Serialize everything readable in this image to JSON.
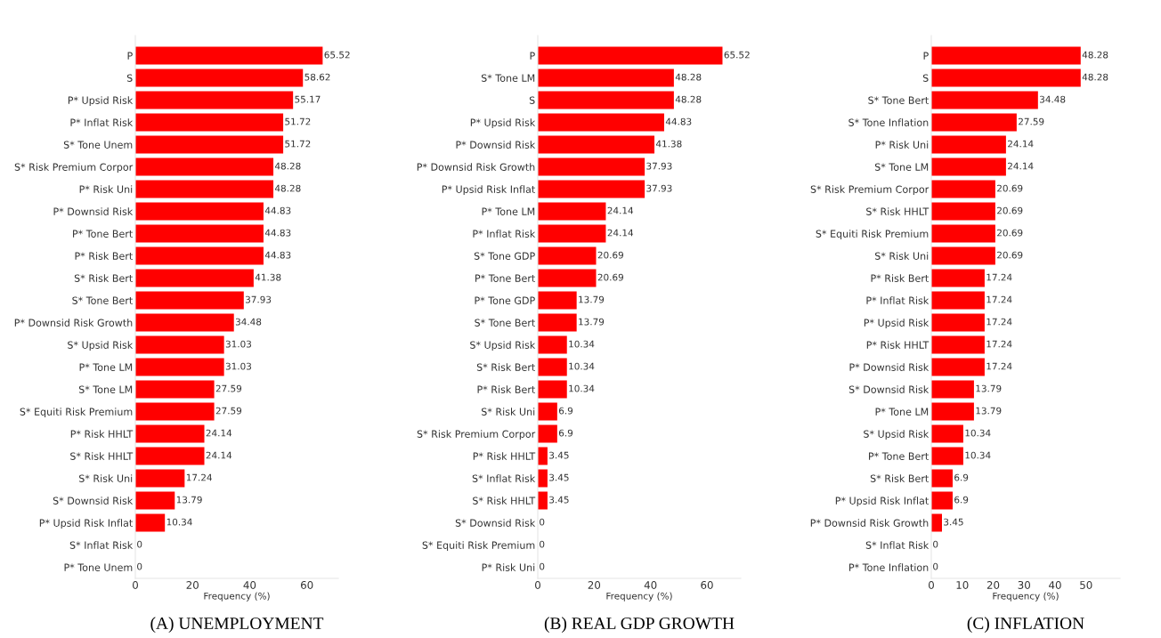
{
  "chart_data": [
    {
      "type": "bar",
      "orientation": "horizontal",
      "xlabel": "Frequency (%)",
      "xlim": [
        0,
        71
      ],
      "xticks": [
        0,
        20,
        40,
        60
      ],
      "data_labels": true,
      "grid": false,
      "color": "#ff0000",
      "annotations": [
        "(A) UNEMPLOYMENT"
      ],
      "categories": [
        "P",
        "S",
        "P* Upsid Risk",
        "P* Inflat Risk",
        "S* Tone Unem",
        "S* Risk Premium Corpor",
        "P* Risk Uni",
        "P* Downsid Risk",
        "P* Tone Bert",
        "P* Risk Bert",
        "S* Risk Bert",
        "S* Tone Bert",
        "P* Downsid Risk Growth",
        "S* Upsid Risk",
        "P* Tone LM",
        "S* Tone LM",
        "S* Equiti Risk Premium",
        "P* Risk HHLT",
        "S* Risk HHLT",
        "S* Risk Uni",
        "S* Downsid Risk",
        "P* Upsid Risk Inflat",
        "S* Inflat Risk",
        "P* Tone Unem"
      ],
      "values": [
        65.52,
        58.62,
        55.17,
        51.72,
        51.72,
        48.28,
        48.28,
        44.83,
        44.83,
        44.83,
        41.38,
        37.93,
        34.48,
        31.03,
        31.03,
        27.59,
        27.59,
        24.14,
        24.14,
        17.24,
        13.79,
        10.34,
        0,
        0
      ]
    },
    {
      "type": "bar",
      "orientation": "horizontal",
      "xlabel": "Frequency (%)",
      "xlim": [
        0,
        72
      ],
      "xticks": [
        0,
        20,
        40,
        60
      ],
      "data_labels": true,
      "grid": false,
      "color": "#ff0000",
      "annotations": [
        "(B) REAL GDP GROWTH"
      ],
      "categories": [
        "P",
        "S* Tone LM",
        "S",
        "P* Upsid Risk",
        "P* Downsid Risk",
        "P* Downsid Risk Growth",
        "P* Upsid Risk Inflat",
        "P* Tone LM",
        "P* Inflat Risk",
        "S* Tone GDP",
        "P* Tone Bert",
        "P* Tone GDP",
        "S* Tone Bert",
        "S* Upsid Risk",
        "S* Risk Bert",
        "P* Risk Bert",
        "S* Risk Uni",
        "S* Risk Premium Corpor",
        "P* Risk HHLT",
        "S* Inflat Risk",
        "S* Risk HHLT",
        "S* Downsid Risk",
        "S* Equiti Risk Premium",
        "P* Risk Uni"
      ],
      "values": [
        65.52,
        48.28,
        48.28,
        44.83,
        41.38,
        37.93,
        37.93,
        24.14,
        24.14,
        20.69,
        20.69,
        13.79,
        13.79,
        10.34,
        10.34,
        10.34,
        6.9,
        6.9,
        3.45,
        3.45,
        3.45,
        0,
        0,
        0
      ]
    },
    {
      "type": "bar",
      "orientation": "horizontal",
      "xlabel": "Frequency (%)",
      "xlim": [
        0,
        61
      ],
      "xticks": [
        0,
        10,
        20,
        30,
        40,
        50
      ],
      "data_labels": true,
      "grid": false,
      "color": "#ff0000",
      "annotations": [
        "(C) INFLATION"
      ],
      "categories": [
        "P",
        "S",
        "S* Tone Bert",
        "S* Tone Inflation",
        "P* Risk Uni",
        "S* Tone LM",
        "S* Risk Premium Corpor",
        "S* Risk HHLT",
        "S* Equiti Risk Premium",
        "S* Risk Uni",
        "P* Risk Bert",
        "P* Inflat Risk",
        "P* Upsid Risk",
        "P* Risk HHLT",
        "P* Downsid Risk",
        "S* Downsid Risk",
        "P* Tone LM",
        "S* Upsid Risk",
        "P* Tone Bert",
        "S* Risk Bert",
        "P* Upsid Risk Inflat",
        "P* Downsid Risk Growth",
        "S* Inflat Risk",
        "P* Tone Inflation"
      ],
      "values": [
        48.28,
        48.28,
        34.48,
        27.59,
        24.14,
        24.14,
        20.69,
        20.69,
        20.69,
        20.69,
        17.24,
        17.24,
        17.24,
        17.24,
        17.24,
        13.79,
        13.79,
        10.34,
        10.34,
        6.9,
        6.9,
        3.45,
        0,
        0
      ]
    }
  ]
}
